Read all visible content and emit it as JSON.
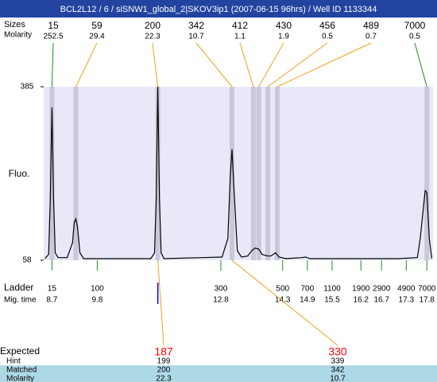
{
  "chart_data": {
    "type": "electropherogram",
    "title": "BCL2L12 / 6 / siSNW1_global_2|SKOV3ip1 (2007-06-15 96hrs) / Well ID 1133344",
    "y_label": "Fluo.",
    "ylim": [
      58,
      385
    ],
    "yticks": [
      58,
      385
    ],
    "xlim": [
      8.5,
      17.95
    ],
    "background": "#e8e8f8",
    "band_color": "#c8c8d8",
    "trace_color": "#000000",
    "peaks": {
      "row_labels": [
        "Sizes",
        "Molarity"
      ],
      "sizes": [
        15,
        59,
        200,
        342,
        412,
        430,
        456,
        489,
        7000
      ],
      "molarity": [
        252.5,
        29.4,
        22.3,
        10.7,
        1.1,
        1.9,
        0.5,
        0.7,
        0.5
      ],
      "times": [
        8.7,
        9.28,
        11.27,
        13.07,
        13.59,
        13.72,
        13.94,
        14.17,
        17.8
      ],
      "colors": [
        "#228b22",
        "#f0a020",
        "#f0a020",
        "#f0a020",
        "#f0a020",
        "#f0a020",
        "#f0a020",
        "#f0a020",
        "#228b22"
      ]
    },
    "ladder": {
      "row_labels": [
        "Ladder",
        "Mig. time"
      ],
      "sizes": [
        15,
        100,
        300,
        500,
        700,
        1100,
        1900,
        2900,
        4900,
        7000
      ],
      "times": [
        8.7,
        9.8,
        12.8,
        14.3,
        14.9,
        15.5,
        16.2,
        16.7,
        17.3,
        17.8
      ],
      "color": "#228b22"
    },
    "expected": {
      "row_labels": [
        "Expected",
        "Hint",
        "Matched",
        "Molarity"
      ],
      "values": [
        187,
        330
      ],
      "hint": [
        199,
        339
      ],
      "matched": [
        200,
        342
      ],
      "molarity": [
        22.3,
        10.7
      ],
      "color": "#ff0000",
      "line_color": "#f0a020",
      "marker_color": "#0000ff",
      "row_color": "#add8e6"
    },
    "trace": {
      "x": [
        8.53,
        8.62,
        8.66,
        8.7,
        8.74,
        8.78,
        8.85,
        9.07,
        9.2,
        9.24,
        9.28,
        9.32,
        9.38,
        9.47,
        11.1,
        11.19,
        11.23,
        11.27,
        11.31,
        11.35,
        11.42,
        12.83,
        12.97,
        13.03,
        13.07,
        13.12,
        13.2,
        13.3,
        13.45,
        13.55,
        13.63,
        13.72,
        13.8,
        13.94,
        14.01,
        14.13,
        14.21,
        14.38,
        14.77,
        14.86,
        14.96,
        15.54,
        17.09,
        17.57,
        17.64,
        17.76,
        17.8,
        17.86,
        17.92
      ],
      "y": [
        61,
        69,
        174,
        346,
        174,
        72,
        63,
        63,
        91,
        129,
        136,
        121,
        72,
        61,
        61,
        72,
        174,
        385,
        174,
        72,
        61,
        64,
        99,
        219,
        267,
        189,
        76,
        64,
        66,
        76,
        81,
        79,
        69,
        66,
        66,
        72,
        64,
        61,
        63,
        64,
        61,
        61,
        61,
        63,
        99,
        189,
        186,
        99,
        61
      ]
    }
  }
}
